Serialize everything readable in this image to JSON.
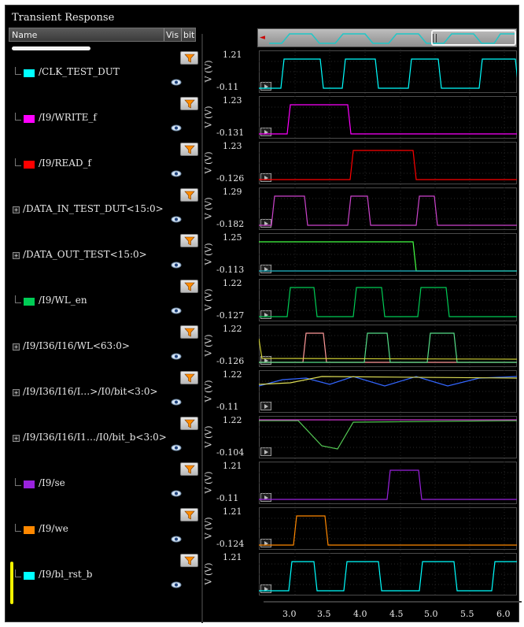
{
  "window": {
    "title": "Transient Response"
  },
  "columns": {
    "name": "Name",
    "vis": "Vis",
    "bit": "bit"
  },
  "signals": [
    {
      "name": "/CLK_TEST_DUT",
      "color": "#00ffff",
      "expandable": false,
      "ymax": "1.21",
      "ymin": "-0.11"
    },
    {
      "name": "/I9/WRITE_f",
      "color": "#ff00ff",
      "expandable": false,
      "ymax": "1.23",
      "ymin": "-0.131"
    },
    {
      "name": "/I9/READ_f",
      "color": "#ff0000",
      "expandable": false,
      "ymax": "1.23",
      "ymin": "-0.126"
    },
    {
      "name": "/DATA_IN_TEST_DUT<15:0>",
      "color": "#cc44cc",
      "expandable": true,
      "ymax": "1.29",
      "ymin": "-0.182"
    },
    {
      "name": "/DATA_OUT_TEST<15:0>",
      "color": "#44ff44",
      "expandable": true,
      "ymax": "1.25",
      "ymin": "-0.113"
    },
    {
      "name": "/I9/WL_en",
      "color": "#00cc55",
      "expandable": false,
      "ymax": "1.22",
      "ymin": "-0.127"
    },
    {
      "name": "/I9/I36/I16/WL<63:0>",
      "color": "#55dd88",
      "expandable": true,
      "ymax": "1.22",
      "ymin": "-0.126"
    },
    {
      "name": "/I9/I36/I16/I…>/I0/bit<3:0>",
      "color": "#3366ff",
      "expandable": true,
      "ymax": "1.22",
      "ymin": "-0.11"
    },
    {
      "name": "/I9/I36/I16/I1…/I0/bit_b<3:0>",
      "color": "#8833cc",
      "expandable": true,
      "ymax": "1.22",
      "ymin": "-0.104"
    },
    {
      "name": "/I9/se",
      "color": "#9922dd",
      "expandable": false,
      "ymax": "1.21",
      "ymin": "-0.11"
    },
    {
      "name": "/I9/we",
      "color": "#ff8800",
      "expandable": false,
      "ymax": "1.21",
      "ymin": "-0.124"
    },
    {
      "name": "/I9/bl_rst_b",
      "color": "#00ffff",
      "expandable": false,
      "ymax": "1.21",
      "ymin": ""
    }
  ],
  "ylabel": "V (V)",
  "xticks": [
    "3.0",
    "3.5",
    "4.0",
    "4.5",
    "5.0",
    "5.5",
    "6.0"
  ],
  "icons": {
    "filter": "filter-funnel-icon",
    "visibility": "eye-icon",
    "play": "play-icon"
  }
}
